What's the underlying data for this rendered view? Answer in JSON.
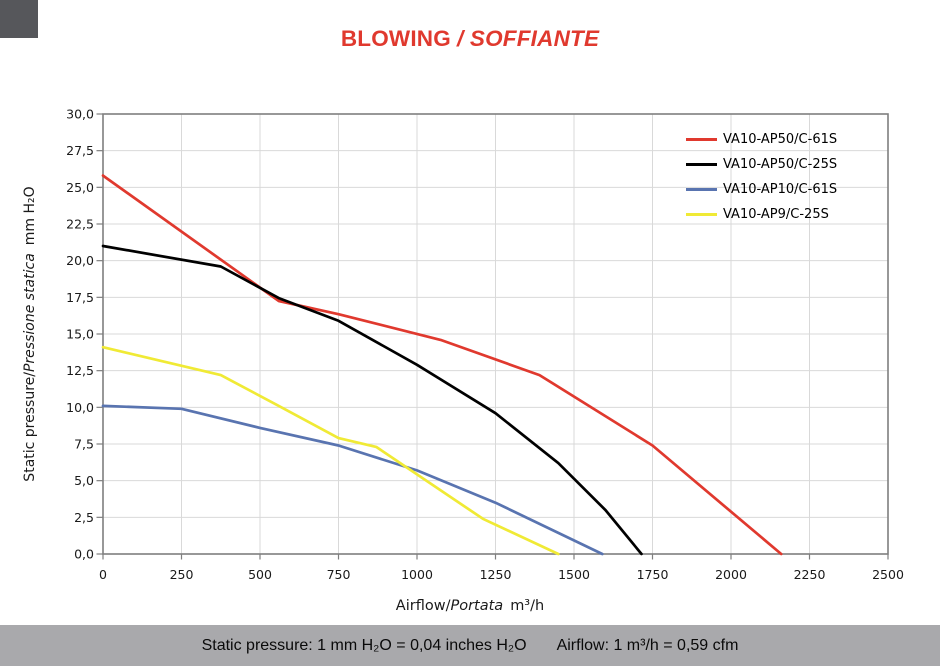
{
  "title": {
    "upright": "BLOWING",
    "italic": "/ SOFFIANTE"
  },
  "colors": {
    "title": "#e0392e",
    "axis": "#7f7f7f",
    "grid": "#d9d9d9",
    "tick_text": "#1a1a1a",
    "footer_bar": "#a9a9ac",
    "corner_mark": "#56575b"
  },
  "chart_data": {
    "type": "line",
    "title": "BLOWING / SOFFIANTE",
    "xlabel": {
      "plain": "Airflow/",
      "italic": "Portata",
      "unit": "m³/h"
    },
    "ylabel": {
      "plain": "Static pressure/",
      "italic": "Pressione statica",
      "unit": "mm H₂O"
    },
    "xlim": [
      0,
      2500
    ],
    "ylim": [
      0,
      30
    ],
    "grid": true,
    "legend_position": "top-right",
    "x_ticks": [
      {
        "v": 0,
        "label": "0"
      },
      {
        "v": 250,
        "label": "250"
      },
      {
        "v": 500,
        "label": "500"
      },
      {
        "v": 750,
        "label": "750"
      },
      {
        "v": 1000,
        "label": "1000"
      },
      {
        "v": 1250,
        "label": "1250"
      },
      {
        "v": 1500,
        "label": "1500"
      },
      {
        "v": 1750,
        "label": "1750"
      },
      {
        "v": 2000,
        "label": "2000"
      },
      {
        "v": 2250,
        "label": "2250"
      },
      {
        "v": 2500,
        "label": "2500"
      }
    ],
    "y_ticks": [
      {
        "v": 0,
        "label": "0,0"
      },
      {
        "v": 2.5,
        "label": "2,5"
      },
      {
        "v": 5,
        "label": "5,0"
      },
      {
        "v": 7.5,
        "label": "7,5"
      },
      {
        "v": 10,
        "label": "10,0"
      },
      {
        "v": 12.5,
        "label": "12,5"
      },
      {
        "v": 15,
        "label": "15,0"
      },
      {
        "v": 17.5,
        "label": "17,5"
      },
      {
        "v": 20,
        "label": "20,0"
      },
      {
        "v": 22.5,
        "label": "22,5"
      },
      {
        "v": 25,
        "label": "25,0"
      },
      {
        "v": 27.5,
        "label": "27,5"
      },
      {
        "v": 30,
        "label": "30,0"
      }
    ],
    "series": [
      {
        "name": "VA10-AP50/C-61S",
        "color": "#e0392e",
        "points": [
          [
            0,
            25.8
          ],
          [
            560,
            17.25
          ],
          [
            750,
            16.35
          ],
          [
            1075,
            14.6
          ],
          [
            1390,
            12.2
          ],
          [
            1750,
            7.4
          ],
          [
            2160,
            0
          ]
        ]
      },
      {
        "name": "VA10-AP50/C-25S",
        "color": "#000000",
        "points": [
          [
            0,
            21.0
          ],
          [
            375,
            19.6
          ],
          [
            560,
            17.45
          ],
          [
            750,
            15.9
          ],
          [
            1000,
            12.9
          ],
          [
            1250,
            9.6
          ],
          [
            1450,
            6.2
          ],
          [
            1600,
            3.0
          ],
          [
            1715,
            0
          ]
        ]
      },
      {
        "name": "VA10-AP10/C-61S",
        "color": "#5974b0",
        "points": [
          [
            0,
            10.1
          ],
          [
            250,
            9.9
          ],
          [
            500,
            8.6
          ],
          [
            750,
            7.4
          ],
          [
            1000,
            5.7
          ],
          [
            1250,
            3.5
          ],
          [
            1590,
            0
          ]
        ]
      },
      {
        "name": "VA10-AP9/C-25S",
        "color": "#f0ea35",
        "points": [
          [
            0,
            14.1
          ],
          [
            375,
            12.2
          ],
          [
            560,
            10.1
          ],
          [
            750,
            7.9
          ],
          [
            870,
            7.3
          ],
          [
            1210,
            2.4
          ],
          [
            1450,
            0
          ]
        ]
      }
    ]
  },
  "footer": {
    "static_pressure": "Static pressure: 1 mm H₂O = 0,04 inches H₂O",
    "airflow": "Airflow: 1 m³/h = 0,59 cfm"
  }
}
